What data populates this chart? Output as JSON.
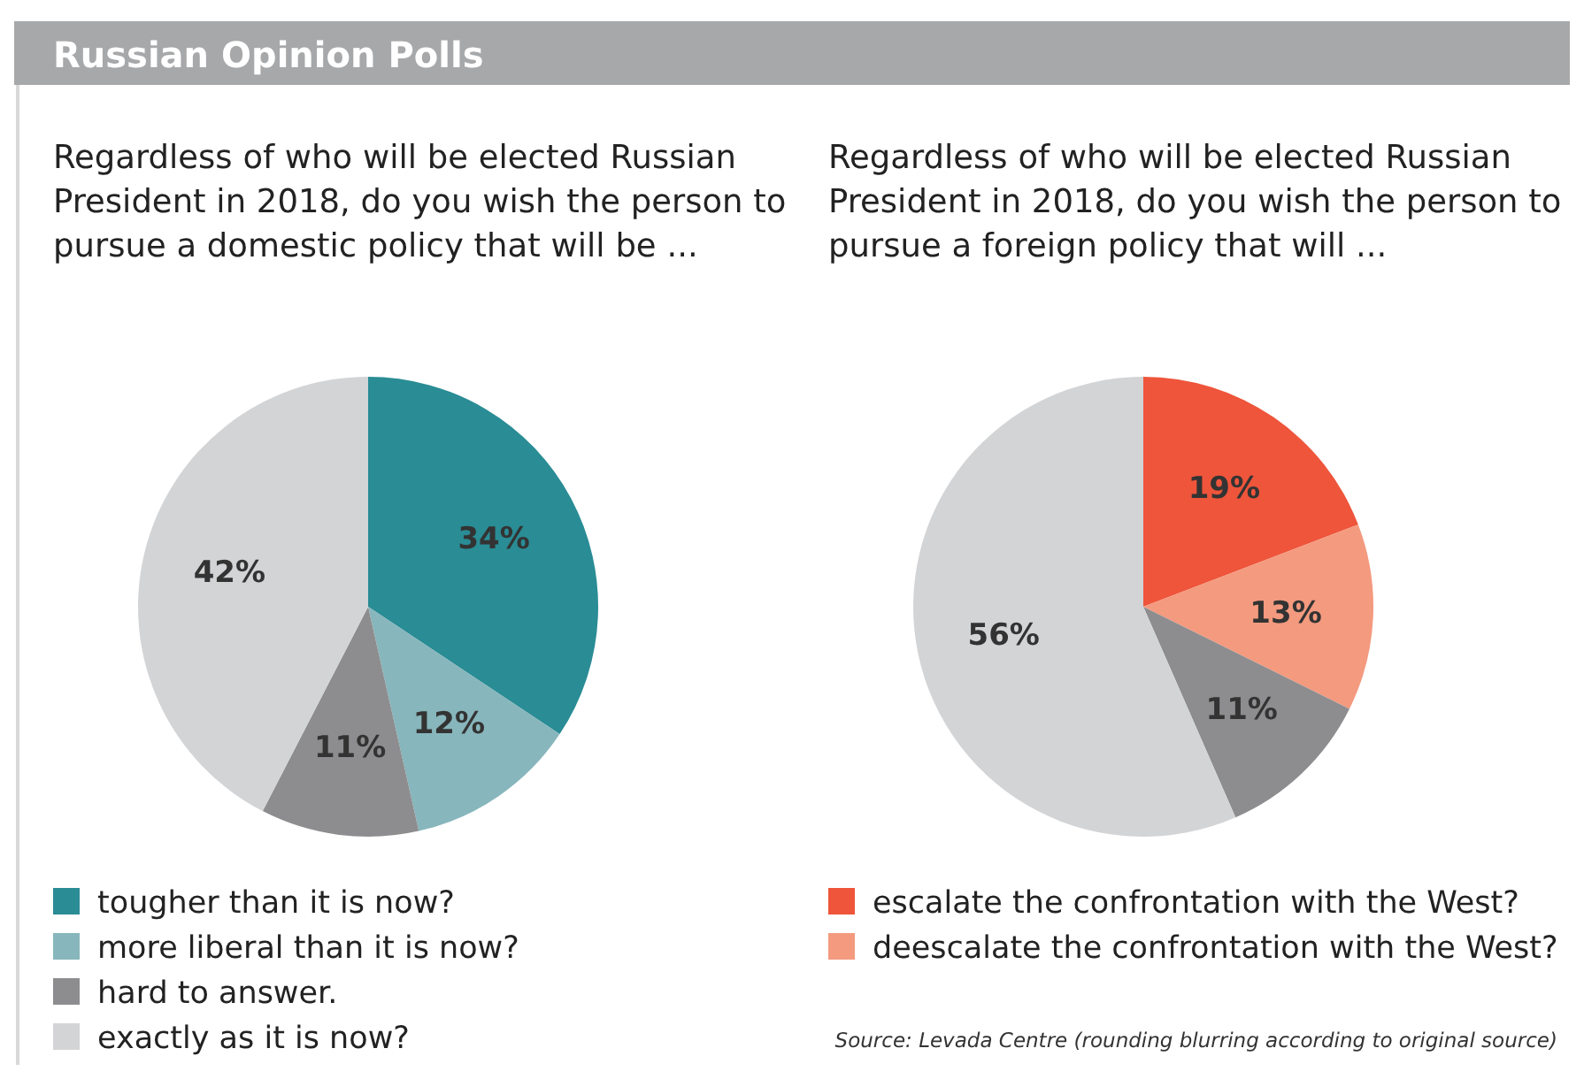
{
  "chart_data": [
    {
      "type": "pie",
      "title": "Russian Opinion Polls",
      "subtitle": "Regardless of who will be elected Russian President in 2018, do you wish the person to pursue a domestic policy that will be ...",
      "categories": [
        "tougher than it is now?",
        "more liberal than it is now?",
        "hard to answer.",
        "exactly as it is now?"
      ],
      "values": [
        34,
        12,
        11,
        42
      ],
      "value_labels": [
        "34%",
        "12%",
        "11%",
        "42%"
      ],
      "colors": [
        "#2a8c95",
        "#87b6bc",
        "#8d8d8f",
        "#d3d4d6"
      ],
      "legend": "bottom"
    },
    {
      "type": "pie",
      "subtitle": "Regardless of who will be elected Russian President in 2018, do you wish the person to pursue a foreign policy that will ...",
      "categories": [
        "escalate the confrontation with the West?",
        "deescalate the confrontation with the West?",
        null,
        null
      ],
      "values": [
        19,
        13,
        11,
        56
      ],
      "value_labels": [
        "19%",
        "13%",
        "11%",
        "56%"
      ],
      "colors": [
        "#ee553b",
        "#f49a7f",
        "#8d8d8f",
        "#d3d4d6"
      ],
      "legend": "bottom",
      "annotations": [
        "Source: Levada Centre (rounding blurring according to original source)"
      ]
    }
  ]
}
